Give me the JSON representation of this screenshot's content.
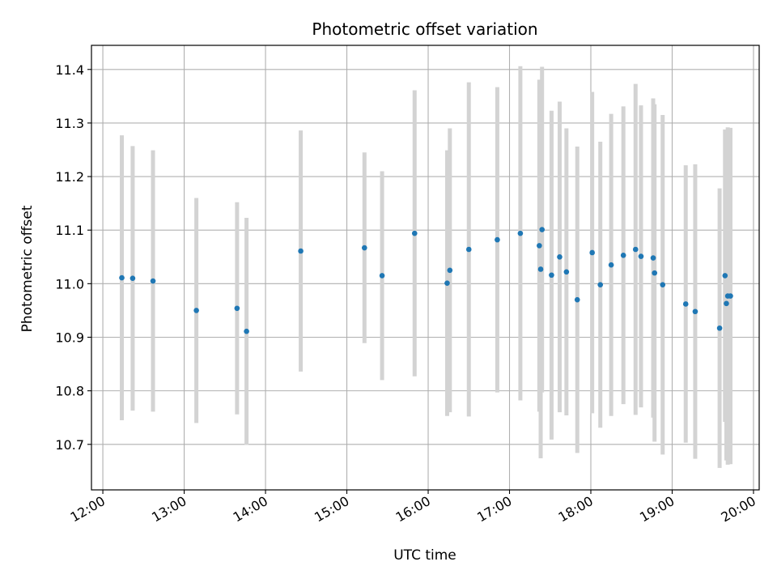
{
  "chart_data": {
    "type": "scatter",
    "title": "Photometric offset variation",
    "xlabel": "UTC time",
    "ylabel": "Photometric offset",
    "x_tick_labels": [
      "12:00",
      "13:00",
      "14:00",
      "15:00",
      "16:00",
      "17:00",
      "18:00",
      "19:00",
      "20:00"
    ],
    "x_tick_hours": [
      12,
      13,
      14,
      15,
      16,
      17,
      18,
      19,
      20
    ],
    "y_ticks": [
      10.7,
      10.8,
      10.9,
      11.0,
      11.1,
      11.2,
      11.3,
      11.4
    ],
    "y_tick_labels": [
      "10.7",
      "10.8",
      "10.9",
      "11.0",
      "11.1",
      "11.2",
      "11.3",
      "11.4"
    ],
    "xlim_hours": [
      11.86,
      20.07
    ],
    "ylim": [
      10.615,
      11.445
    ],
    "grid": true,
    "marker_color": "#1f77b4",
    "errorbar_color": "#d3d3d3",
    "points": [
      {
        "t": "12:14",
        "y": 11.011,
        "err": 0.266
      },
      {
        "t": "12:22",
        "y": 11.01,
        "err": 0.247
      },
      {
        "t": "12:37",
        "y": 11.005,
        "err": 0.244
      },
      {
        "t": "13:09",
        "y": 10.95,
        "err": 0.21
      },
      {
        "t": "13:39",
        "y": 10.954,
        "err": 0.198
      },
      {
        "t": "13:46",
        "y": 10.911,
        "err": 0.212
      },
      {
        "t": "14:26",
        "y": 11.061,
        "err": 0.225
      },
      {
        "t": "15:13",
        "y": 11.067,
        "err": 0.178
      },
      {
        "t": "15:26",
        "y": 11.015,
        "err": 0.195
      },
      {
        "t": "15:50",
        "y": 11.094,
        "err": 0.267
      },
      {
        "t": "16:14",
        "y": 11.001,
        "err": 0.248
      },
      {
        "t": "16:16",
        "y": 11.025,
        "err": 0.265
      },
      {
        "t": "16:30",
        "y": 11.064,
        "err": 0.312
      },
      {
        "t": "16:51",
        "y": 11.082,
        "err": 0.285
      },
      {
        "t": "17:08",
        "y": 11.094,
        "err": 0.312
      },
      {
        "t": "17:22",
        "y": 11.071,
        "err": 0.31
      },
      {
        "t": "17:23",
        "y": 11.027,
        "err": 0.353
      },
      {
        "t": "17:24",
        "y": 11.101,
        "err": 0.304
      },
      {
        "t": "17:31",
        "y": 11.016,
        "err": 0.307
      },
      {
        "t": "17:37",
        "y": 11.05,
        "err": 0.29
      },
      {
        "t": "17:42",
        "y": 11.022,
        "err": 0.268
      },
      {
        "t": "17:50",
        "y": 10.97,
        "err": 0.286
      },
      {
        "t": "18:01",
        "y": 11.058,
        "err": 0.3
      },
      {
        "t": "18:07",
        "y": 10.998,
        "err": 0.267
      },
      {
        "t": "18:15",
        "y": 11.035,
        "err": 0.282
      },
      {
        "t": "18:24",
        "y": 11.053,
        "err": 0.278
      },
      {
        "t": "18:33",
        "y": 11.064,
        "err": 0.309
      },
      {
        "t": "18:37",
        "y": 11.051,
        "err": 0.282
      },
      {
        "t": "18:46",
        "y": 11.048,
        "err": 0.298
      },
      {
        "t": "18:47",
        "y": 11.02,
        "err": 0.315
      },
      {
        "t": "18:53",
        "y": 10.998,
        "err": 0.317
      },
      {
        "t": "19:10",
        "y": 10.962,
        "err": 0.259
      },
      {
        "t": "19:17",
        "y": 10.948,
        "err": 0.275
      },
      {
        "t": "19:35",
        "y": 10.917,
        "err": 0.261
      },
      {
        "t": "19:39",
        "y": 11.015,
        "err": 0.273
      },
      {
        "t": "19:40",
        "y": 10.963,
        "err": 0.293
      },
      {
        "t": "19:41",
        "y": 10.977,
        "err": 0.315
      },
      {
        "t": "19:43",
        "y": 10.977,
        "err": 0.314
      }
    ]
  }
}
